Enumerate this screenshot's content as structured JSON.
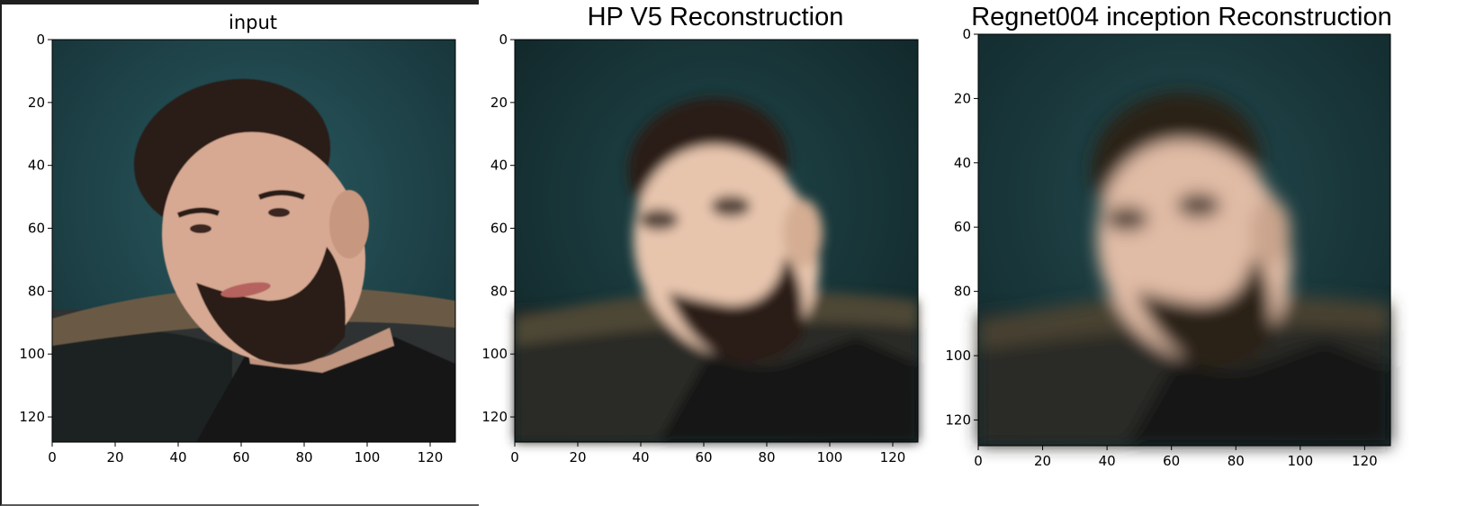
{
  "panels": [
    {
      "title": "input",
      "y_ticks": [
        "0",
        "20",
        "40",
        "60",
        "80",
        "100",
        "120"
      ],
      "x_ticks": [
        "0",
        "20",
        "40",
        "60",
        "80",
        "100",
        "120"
      ],
      "image_description": "bearded man with dark hair, original sharp photo",
      "palette": {
        "background": "#1e4a50",
        "skin": "#d7a892",
        "hair": "#2a1c16",
        "shirt": "#151515"
      }
    },
    {
      "title": "HP V5 Reconstruction",
      "y_ticks": [
        "0",
        "20",
        "40",
        "60",
        "80",
        "100",
        "120"
      ],
      "x_ticks": [
        "0",
        "20",
        "40",
        "60",
        "80",
        "100",
        "120"
      ],
      "image_description": "blurred reconstruction of the face",
      "palette": {
        "background": "#17373a",
        "skin": "#e7c5ad",
        "hair": "#2a1d17",
        "shirt": "#141414"
      }
    },
    {
      "title": "Regnet004 inception Reconstruction",
      "y_ticks": [
        "0",
        "20",
        "40",
        "60",
        "80",
        "100",
        "120"
      ],
      "x_ticks": [
        "0",
        "20",
        "40",
        "60",
        "80",
        "100",
        "120"
      ],
      "image_description": "heavily blurred reconstruction of the face",
      "palette": {
        "background": "#173438",
        "skin": "#e0bba5",
        "hair": "#2c2019",
        "shirt": "#151515"
      }
    }
  ]
}
